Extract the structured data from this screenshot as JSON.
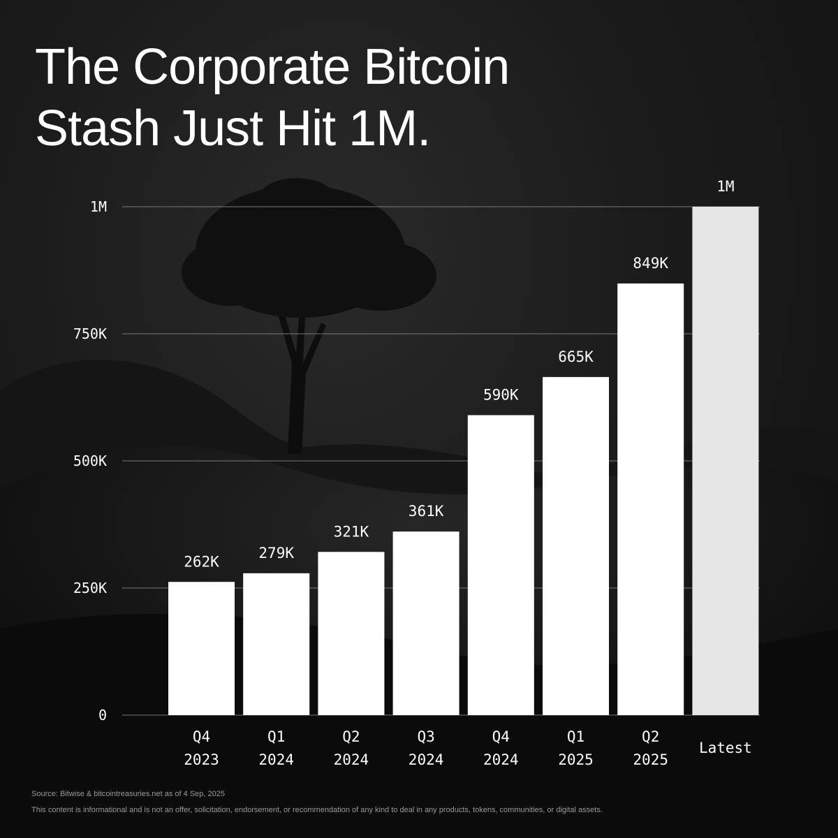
{
  "headline": {
    "line1": "The Corporate Bitcoin",
    "line2": "Stash Just Hit 1M."
  },
  "chart_data": {
    "type": "bar",
    "title": "The Corporate Bitcoin Stash Just Hit 1M.",
    "categories": [
      [
        "Q4",
        "2023"
      ],
      [
        "Q1",
        "2024"
      ],
      [
        "Q2",
        "2024"
      ],
      [
        "Q3",
        "2024"
      ],
      [
        "Q4",
        "2024"
      ],
      [
        "Q1",
        "2025"
      ],
      [
        "Q2",
        "2025"
      ],
      [
        "Latest"
      ]
    ],
    "values": [
      262000,
      279000,
      321000,
      361000,
      590000,
      665000,
      849000,
      1000000
    ],
    "data_labels": [
      "262K",
      "279K",
      "321K",
      "361K",
      "590K",
      "665K",
      "849K",
      "1M"
    ],
    "highlight_index": 7,
    "ylim": [
      0,
      1000000
    ],
    "yticks": [
      {
        "value": 0,
        "label": "0"
      },
      {
        "value": 250000,
        "label": "250K"
      },
      {
        "value": 500000,
        "label": "500K"
      },
      {
        "value": 750000,
        "label": "750K"
      },
      {
        "value": 1000000,
        "label": "1M"
      }
    ],
    "grid": true,
    "legend": "none",
    "colors": {
      "bar": "#ffffff",
      "bar_highlight": "#e6e6e6",
      "text": "#ffffff",
      "grid": "#9a9a9a"
    }
  },
  "footer": {
    "source": "Source: Bitwise & bitcointreasuries.net as of 4 Sep, 2025",
    "disclaimer": "This content is informational and is not an offer, solicitation, endorsement, or recommendation of any kind to deal in any products, tokens, communities, or digital assets."
  }
}
